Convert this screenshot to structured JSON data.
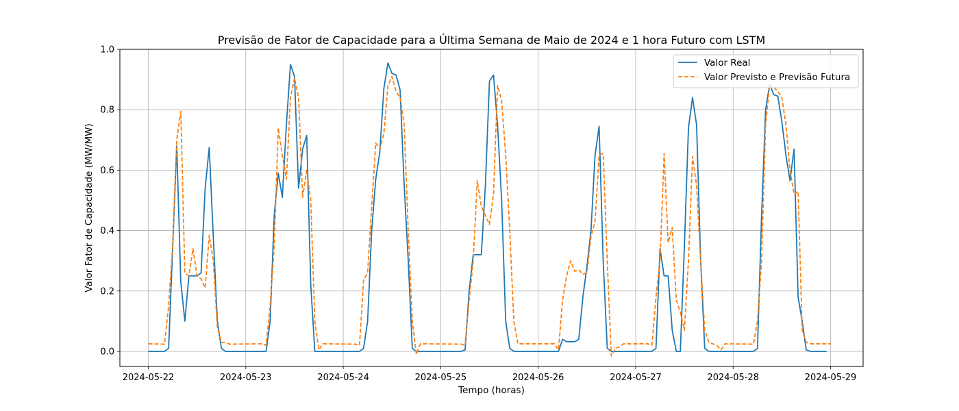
{
  "chart_data": {
    "type": "line",
    "title": "Previsão de Fator de Capacidade para a Última Semana de Maio de 2024 e 1 hora Futuro com LSTM",
    "xlabel": "Tempo (horas)",
    "ylabel": "Valor Fator de Capacidade (MW/MW)",
    "xlim": [
      "2024-05-21 17:00",
      "2024-05-29 08:00"
    ],
    "ylim": [
      -0.05,
      1.0
    ],
    "x_ticks": [
      "2024-05-22",
      "2024-05-23",
      "2024-05-24",
      "2024-05-25",
      "2024-05-26",
      "2024-05-27",
      "2024-05-28",
      "2024-05-29"
    ],
    "y_ticks": [
      "0.0",
      "0.2",
      "0.4",
      "0.6",
      "0.8",
      "1.0"
    ],
    "grid": true,
    "legend_position": "top-right",
    "series": [
      {
        "name": "Valor Real",
        "color": "#1f77b4",
        "style": "solid",
        "points": [
          [
            "2024-05-22 00:00",
            0.0
          ],
          [
            "2024-05-22 04:00",
            0.0
          ],
          [
            "2024-05-22 05:00",
            0.01
          ],
          [
            "2024-05-22 07:00",
            0.68
          ],
          [
            "2024-05-22 08:00",
            0.23
          ],
          [
            "2024-05-22 09:00",
            0.1
          ],
          [
            "2024-05-22 10:00",
            0.25
          ],
          [
            "2024-05-22 12:00",
            0.25
          ],
          [
            "2024-05-22 13:00",
            0.26
          ],
          [
            "2024-05-22 14:00",
            0.54
          ],
          [
            "2024-05-22 15:00",
            0.675
          ],
          [
            "2024-05-22 16:00",
            0.38
          ],
          [
            "2024-05-22 17:00",
            0.1
          ],
          [
            "2024-05-22 18:00",
            0.01
          ],
          [
            "2024-05-22 19:00",
            0.0
          ],
          [
            "2024-05-23 05:00",
            0.0
          ],
          [
            "2024-05-23 06:00",
            0.1
          ],
          [
            "2024-05-23 07:00",
            0.45
          ],
          [
            "2024-05-23 08:00",
            0.59
          ],
          [
            "2024-05-23 09:00",
            0.51
          ],
          [
            "2024-05-23 10:00",
            0.75
          ],
          [
            "2024-05-23 11:00",
            0.95
          ],
          [
            "2024-05-23 12:00",
            0.91
          ],
          [
            "2024-05-23 13:00",
            0.54
          ],
          [
            "2024-05-23 14:00",
            0.67
          ],
          [
            "2024-05-23 15:00",
            0.715
          ],
          [
            "2024-05-23 16:00",
            0.22
          ],
          [
            "2024-05-23 17:00",
            0.0
          ],
          [
            "2024-05-24 04:00",
            0.0
          ],
          [
            "2024-05-24 05:00",
            0.01
          ],
          [
            "2024-05-24 06:00",
            0.1
          ],
          [
            "2024-05-24 07:00",
            0.4
          ],
          [
            "2024-05-24 08:00",
            0.57
          ],
          [
            "2024-05-24 09:00",
            0.66
          ],
          [
            "2024-05-24 10:00",
            0.87
          ],
          [
            "2024-05-24 11:00",
            0.955
          ],
          [
            "2024-05-24 12:00",
            0.92
          ],
          [
            "2024-05-24 13:00",
            0.915
          ],
          [
            "2024-05-24 14:00",
            0.865
          ],
          [
            "2024-05-24 15:00",
            0.55
          ],
          [
            "2024-05-24 16:00",
            0.3
          ],
          [
            "2024-05-24 17:00",
            0.01
          ],
          [
            "2024-05-24 18:00",
            0.0
          ],
          [
            "2024-05-25 05:00",
            0.0
          ],
          [
            "2024-05-25 06:00",
            0.005
          ],
          [
            "2024-05-25 07:00",
            0.2
          ],
          [
            "2024-05-25 08:00",
            0.32
          ],
          [
            "2024-05-25 10:00",
            0.32
          ],
          [
            "2024-05-25 11:00",
            0.55
          ],
          [
            "2024-05-25 12:00",
            0.895
          ],
          [
            "2024-05-25 13:00",
            0.915
          ],
          [
            "2024-05-25 14:00",
            0.75
          ],
          [
            "2024-05-25 15:00",
            0.5
          ],
          [
            "2024-05-25 16:00",
            0.1
          ],
          [
            "2024-05-25 17:00",
            0.01
          ],
          [
            "2024-05-25 18:00",
            0.0
          ],
          [
            "2024-05-26 05:00",
            0.0
          ],
          [
            "2024-05-26 06:00",
            0.04
          ],
          [
            "2024-05-26 07:00",
            0.032
          ],
          [
            "2024-05-26 09:00",
            0.032
          ],
          [
            "2024-05-26 10:00",
            0.04
          ],
          [
            "2024-05-26 11:00",
            0.18
          ],
          [
            "2024-05-26 12:00",
            0.28
          ],
          [
            "2024-05-26 13:00",
            0.4
          ],
          [
            "2024-05-26 14:00",
            0.65
          ],
          [
            "2024-05-26 15:00",
            0.745
          ],
          [
            "2024-05-26 16:00",
            0.3
          ],
          [
            "2024-05-26 17:00",
            0.01
          ],
          [
            "2024-05-26 18:00",
            0.0
          ],
          [
            "2024-05-27 04:00",
            0.0
          ],
          [
            "2024-05-27 05:00",
            0.01
          ],
          [
            "2024-05-27 06:00",
            0.34
          ],
          [
            "2024-05-27 07:00",
            0.25
          ],
          [
            "2024-05-27 08:00",
            0.25
          ],
          [
            "2024-05-27 09:00",
            0.07
          ],
          [
            "2024-05-27 10:00",
            0.0
          ],
          [
            "2024-05-27 11:00",
            0.0
          ],
          [
            "2024-05-27 12:00",
            0.35
          ],
          [
            "2024-05-27 13:00",
            0.74
          ],
          [
            "2024-05-27 14:00",
            0.84
          ],
          [
            "2024-05-27 15:00",
            0.75
          ],
          [
            "2024-05-27 16:00",
            0.3
          ],
          [
            "2024-05-27 17:00",
            0.01
          ],
          [
            "2024-05-27 18:00",
            0.0
          ],
          [
            "2024-05-28 05:00",
            0.0
          ],
          [
            "2024-05-28 06:00",
            0.01
          ],
          [
            "2024-05-28 07:00",
            0.45
          ],
          [
            "2024-05-28 08:00",
            0.8
          ],
          [
            "2024-05-28 09:00",
            0.885
          ],
          [
            "2024-05-28 10:00",
            0.85
          ],
          [
            "2024-05-28 11:00",
            0.845
          ],
          [
            "2024-05-28 12:00",
            0.76
          ],
          [
            "2024-05-28 13:00",
            0.65
          ],
          [
            "2024-05-28 14:00",
            0.565
          ],
          [
            "2024-05-28 15:00",
            0.67
          ],
          [
            "2024-05-28 16:00",
            0.18
          ],
          [
            "2024-05-28 17:00",
            0.1
          ],
          [
            "2024-05-28 18:00",
            0.005
          ],
          [
            "2024-05-28 19:00",
            0.0
          ],
          [
            "2024-05-28 23:00",
            0.0
          ]
        ]
      },
      {
        "name": "Valor Previsto e Previsão Futura",
        "color": "#ff7f0e",
        "style": "dashed",
        "points": [
          [
            "2024-05-22 00:00",
            0.025
          ],
          [
            "2024-05-22 04:00",
            0.024
          ],
          [
            "2024-05-22 05:00",
            0.15
          ],
          [
            "2024-05-22 06:00",
            0.35
          ],
          [
            "2024-05-22 07:00",
            0.7
          ],
          [
            "2024-05-22 08:00",
            0.795
          ],
          [
            "2024-05-22 09:00",
            0.26
          ],
          [
            "2024-05-22 10:00",
            0.25
          ],
          [
            "2024-05-22 11:00",
            0.34
          ],
          [
            "2024-05-22 12:00",
            0.25
          ],
          [
            "2024-05-22 13:00",
            0.24
          ],
          [
            "2024-05-22 14:00",
            0.21
          ],
          [
            "2024-05-22 15:00",
            0.385
          ],
          [
            "2024-05-22 16:00",
            0.3
          ],
          [
            "2024-05-22 17:00",
            0.08
          ],
          [
            "2024-05-22 18:00",
            0.03
          ],
          [
            "2024-05-22 19:00",
            0.03
          ],
          [
            "2024-05-22 20:00",
            0.024
          ],
          [
            "2024-05-23 04:00",
            0.025
          ],
          [
            "2024-05-23 05:00",
            0.02
          ],
          [
            "2024-05-23 06:00",
            0.15
          ],
          [
            "2024-05-23 07:00",
            0.35
          ],
          [
            "2024-05-23 08:00",
            0.74
          ],
          [
            "2024-05-23 09:00",
            0.65
          ],
          [
            "2024-05-23 10:00",
            0.57
          ],
          [
            "2024-05-23 11:00",
            0.84
          ],
          [
            "2024-05-23 12:00",
            0.905
          ],
          [
            "2024-05-23 13:00",
            0.84
          ],
          [
            "2024-05-23 14:00",
            0.51
          ],
          [
            "2024-05-23 15:00",
            0.6
          ],
          [
            "2024-05-23 16:00",
            0.5
          ],
          [
            "2024-05-23 17:00",
            0.1
          ],
          [
            "2024-05-23 18:00",
            0.005
          ],
          [
            "2024-05-23 19:00",
            0.025
          ],
          [
            "2024-05-24 03:00",
            0.024
          ],
          [
            "2024-05-24 04:00",
            0.02
          ],
          [
            "2024-05-24 05:00",
            0.235
          ],
          [
            "2024-05-24 06:00",
            0.26
          ],
          [
            "2024-05-24 07:00",
            0.48
          ],
          [
            "2024-05-24 08:00",
            0.69
          ],
          [
            "2024-05-24 09:00",
            0.67
          ],
          [
            "2024-05-24 10:00",
            0.72
          ],
          [
            "2024-05-24 11:00",
            0.88
          ],
          [
            "2024-05-24 12:00",
            0.91
          ],
          [
            "2024-05-24 13:00",
            0.86
          ],
          [
            "2024-05-24 14:00",
            0.84
          ],
          [
            "2024-05-24 15:00",
            0.75
          ],
          [
            "2024-05-24 16:00",
            0.4
          ],
          [
            "2024-05-24 17:00",
            0.1
          ],
          [
            "2024-05-24 18:00",
            -0.01
          ],
          [
            "2024-05-24 19:00",
            0.025
          ],
          [
            "2024-05-25 05:00",
            0.024
          ],
          [
            "2024-05-25 06:00",
            0.02
          ],
          [
            "2024-05-25 07:00",
            0.17
          ],
          [
            "2024-05-25 08:00",
            0.3
          ],
          [
            "2024-05-25 09:00",
            0.565
          ],
          [
            "2024-05-25 10:00",
            0.48
          ],
          [
            "2024-05-25 11:00",
            0.45
          ],
          [
            "2024-05-25 12:00",
            0.42
          ],
          [
            "2024-05-25 13:00",
            0.52
          ],
          [
            "2024-05-25 14:00",
            0.88
          ],
          [
            "2024-05-25 15:00",
            0.83
          ],
          [
            "2024-05-25 16:00",
            0.65
          ],
          [
            "2024-05-25 17:00",
            0.4
          ],
          [
            "2024-05-25 18:00",
            0.1
          ],
          [
            "2024-05-25 19:00",
            0.025
          ],
          [
            "2024-05-26 04:00",
            0.025
          ],
          [
            "2024-05-26 05:00",
            0.005
          ],
          [
            "2024-05-26 06:00",
            0.17
          ],
          [
            "2024-05-26 07:00",
            0.25
          ],
          [
            "2024-05-26 08:00",
            0.3
          ],
          [
            "2024-05-26 09:00",
            0.265
          ],
          [
            "2024-05-26 10:00",
            0.27
          ],
          [
            "2024-05-26 11:00",
            0.255
          ],
          [
            "2024-05-26 12:00",
            0.26
          ],
          [
            "2024-05-26 13:00",
            0.38
          ],
          [
            "2024-05-26 14:00",
            0.43
          ],
          [
            "2024-05-26 15:00",
            0.65
          ],
          [
            "2024-05-26 16:00",
            0.655
          ],
          [
            "2024-05-26 17:00",
            0.3
          ],
          [
            "2024-05-26 18:00",
            -0.015
          ],
          [
            "2024-05-26 19:00",
            0.01
          ],
          [
            "2024-05-26 20:00",
            0.015
          ],
          [
            "2024-05-26 21:00",
            0.025
          ],
          [
            "2024-05-27 03:00",
            0.025
          ],
          [
            "2024-05-27 04:00",
            0.02
          ],
          [
            "2024-05-27 05:00",
            0.18
          ],
          [
            "2024-05-27 06:00",
            0.3
          ],
          [
            "2024-05-27 07:00",
            0.655
          ],
          [
            "2024-05-27 08:00",
            0.36
          ],
          [
            "2024-05-27 09:00",
            0.41
          ],
          [
            "2024-05-27 10:00",
            0.17
          ],
          [
            "2024-05-27 11:00",
            0.13
          ],
          [
            "2024-05-27 12:00",
            0.07
          ],
          [
            "2024-05-27 13:00",
            0.3
          ],
          [
            "2024-05-27 14:00",
            0.645
          ],
          [
            "2024-05-27 15:00",
            0.55
          ],
          [
            "2024-05-27 16:00",
            0.3
          ],
          [
            "2024-05-27 17:00",
            0.07
          ],
          [
            "2024-05-27 18:00",
            0.03
          ],
          [
            "2024-05-27 19:00",
            0.025
          ],
          [
            "2024-05-27 20:00",
            0.02
          ],
          [
            "2024-05-27 21:00",
            0.005
          ],
          [
            "2024-05-27 22:00",
            0.025
          ],
          [
            "2024-05-28 05:00",
            0.024
          ],
          [
            "2024-05-28 06:00",
            0.1
          ],
          [
            "2024-05-28 07:00",
            0.3
          ],
          [
            "2024-05-28 08:00",
            0.75
          ],
          [
            "2024-05-28 09:00",
            0.885
          ],
          [
            "2024-05-28 10:00",
            0.875
          ],
          [
            "2024-05-28 11:00",
            0.86
          ],
          [
            "2024-05-28 12:00",
            0.84
          ],
          [
            "2024-05-28 13:00",
            0.75
          ],
          [
            "2024-05-28 14:00",
            0.6
          ],
          [
            "2024-05-28 15:00",
            0.52
          ],
          [
            "2024-05-28 16:00",
            0.53
          ],
          [
            "2024-05-28 17:00",
            0.07
          ],
          [
            "2024-05-28 18:00",
            0.03
          ],
          [
            "2024-05-28 19:00",
            0.025
          ],
          [
            "2024-05-29 00:00",
            0.025
          ]
        ]
      }
    ]
  }
}
